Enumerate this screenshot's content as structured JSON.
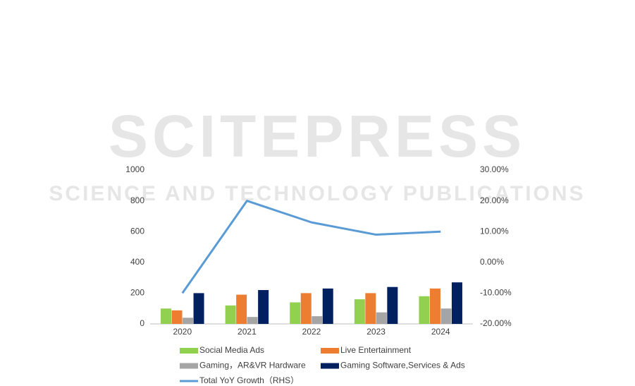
{
  "chart_data": {
    "type": "bar",
    "watermark": [
      "SCITEPRESS",
      "SCIENCE AND TECHNOLOGY PUBLICATIONS"
    ],
    "categories": [
      "2020",
      "2021",
      "2022",
      "2023",
      "2024"
    ],
    "series": [
      {
        "name": "Social Media Ads",
        "color": "#92d050",
        "values": [
          100,
          120,
          140,
          160,
          180
        ]
      },
      {
        "name": "Live Entertainment",
        "color": "#ed7d31",
        "values": [
          88,
          190,
          200,
          200,
          230
        ]
      },
      {
        "name": "Gaming，AR&VR Hardware",
        "color": "#a5a5a5",
        "values": [
          40,
          45,
          50,
          75,
          100
        ]
      },
      {
        "name": "Gaming Software,Services & Ads",
        "color": "#002060",
        "values": [
          200,
          220,
          230,
          240,
          270
        ]
      },
      {
        "name": "Total YoY Growth（RHS）",
        "color": "#5b9bd5",
        "type": "line",
        "axis": "y2",
        "values": [
          -10,
          20,
          13,
          9,
          10
        ]
      }
    ],
    "ylim": [
      0,
      1000
    ],
    "yticks": [
      0,
      200,
      400,
      600,
      800,
      1000
    ],
    "y2lim": [
      -20,
      30
    ],
    "y2ticks": [
      {
        "value": -20,
        "label": "-20.00%"
      },
      {
        "value": -10,
        "label": "-10.00%"
      },
      {
        "value": 0,
        "label": "0.00%"
      },
      {
        "value": 10,
        "label": "10.00%"
      },
      {
        "value": 20,
        "label": "20.00%"
      },
      {
        "value": 30,
        "label": "30.00%"
      }
    ],
    "grid": false
  }
}
